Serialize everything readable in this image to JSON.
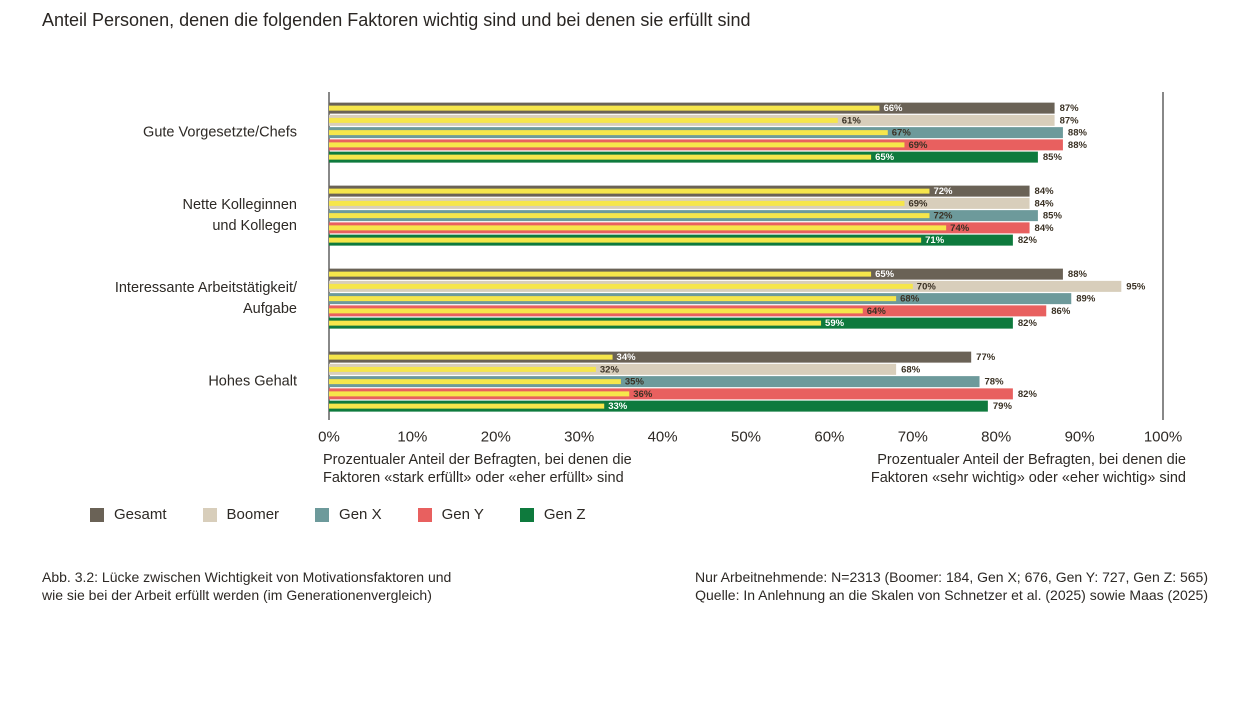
{
  "chart_data": {
    "type": "bar",
    "title": "Anteil Personen, denen die folgenden Faktoren wichtig sind und bei denen sie erfüllt sind",
    "categories": [
      "Gute Vorgesetzte/Chefs",
      "Nette Kolleginnen\nund Kollegen",
      "Interessante Arbeitstätigkeit/\nAufgabe",
      "Hohes Gehalt"
    ],
    "value_suffix": "%",
    "xlim": [
      0,
      100
    ],
    "xtick_labels": [
      "0%",
      "10%",
      "20%",
      "30%",
      "40%",
      "50%",
      "60%",
      "70%",
      "80%",
      "90%",
      "100%"
    ],
    "xlabel_left": [
      "Prozentualer Anteil der Befragten, bei denen die",
      "Faktoren «stark erfüllt» oder «eher erfüllt» sind"
    ],
    "xlabel_right": [
      "Prozentualer Anteil der Befragten, bei denen die",
      "Faktoren «sehr wichtig» oder «eher wichtig» sind"
    ],
    "overlay_color": "#f6e64b",
    "value_label_color": "#3a3124",
    "grid": false,
    "legend_position": "bottom-left",
    "series": [
      {
        "name": "Gesamt",
        "color": "#6a6256",
        "overlay_label_color": "#ffffff",
        "wichtig": [
          87,
          84,
          88,
          77
        ],
        "erfuellt": [
          66,
          72,
          65,
          34
        ]
      },
      {
        "name": "Boomer",
        "color": "#d8cebb",
        "overlay_label_color": "#3a3124",
        "wichtig": [
          87,
          84,
          95,
          68
        ],
        "erfuellt": [
          61,
          69,
          70,
          32
        ]
      },
      {
        "name": "Gen X",
        "color": "#6d9a9b",
        "overlay_label_color": "#3a3124",
        "wichtig": [
          88,
          85,
          89,
          78
        ],
        "erfuellt": [
          67,
          72,
          68,
          35
        ]
      },
      {
        "name": "Gen Y",
        "color": "#e8605f",
        "overlay_label_color": "#3a3124",
        "wichtig": [
          88,
          84,
          86,
          82
        ],
        "erfuellt": [
          69,
          74,
          64,
          36
        ]
      },
      {
        "name": "Gen Z",
        "color": "#0e7a3d",
        "overlay_label_color": "#ffffff",
        "wichtig": [
          85,
          82,
          82,
          79
        ],
        "erfuellt": [
          65,
          71,
          59,
          33
        ]
      }
    ]
  },
  "caption": {
    "figure": [
      "Abb. 3.2: Lücke zwischen Wichtigkeit von Motivationsfaktoren und",
      "wie sie bei der Arbeit erfüllt werden (im Generationenvergleich)"
    ],
    "source": [
      "Nur Arbeitnehmende: N=2313 (Boomer: 184, Gen X; 676, Gen Y: 727, Gen Z: 565)",
      "Quelle: In Anlehnung an die Skalen von Schnetzer et al. (2025) sowie Maas (2025)"
    ]
  }
}
